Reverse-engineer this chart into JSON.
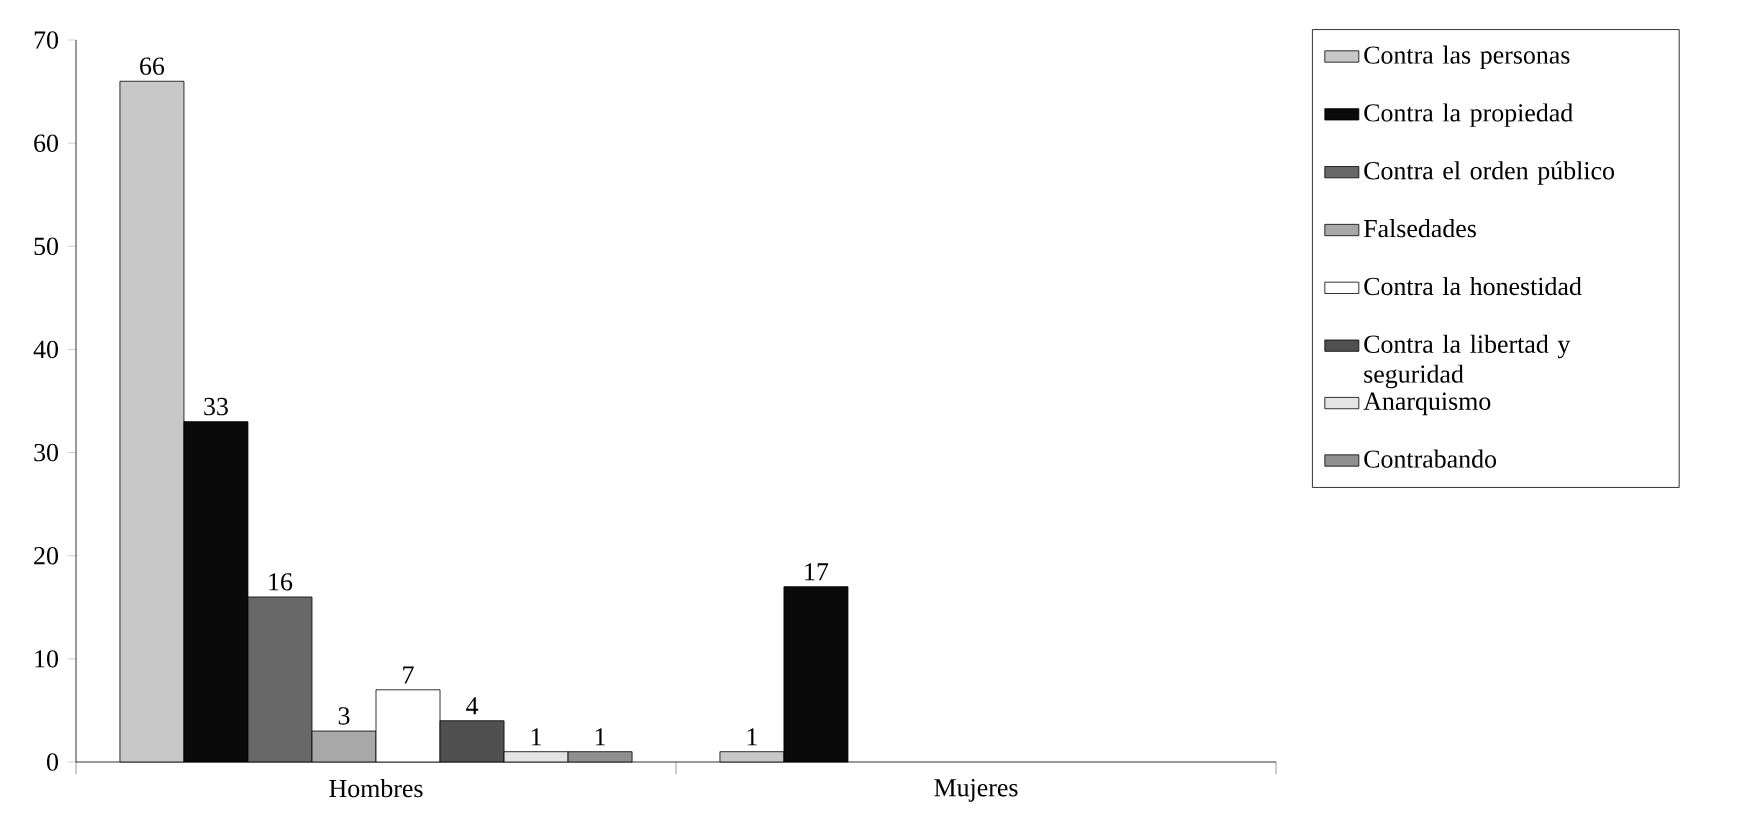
{
  "chart_data": {
    "type": "bar",
    "categories": [
      "Hombres",
      "Mujeres"
    ],
    "series": [
      {
        "name": "Contra las personas",
        "color": "#c8c8c8",
        "values": [
          66,
          1
        ]
      },
      {
        "name": "Contra la propiedad",
        "color": "#0a0a0a",
        "values": [
          33,
          17
        ]
      },
      {
        "name": "Contra el orden público",
        "color": "#686868",
        "values": [
          16,
          null
        ]
      },
      {
        "name": "Falsedades",
        "color": "#a8a8a8",
        "values": [
          3,
          null
        ]
      },
      {
        "name": "Contra la honestidad",
        "color": "#ffffff",
        "values": [
          7,
          null
        ]
      },
      {
        "name": "Contra la libertad y seguridad",
        "color": "#505050",
        "values": [
          4,
          null
        ]
      },
      {
        "name": "Anarquismo",
        "color": "#e4e4e4",
        "values": [
          1,
          null
        ]
      },
      {
        "name": "Contrabando",
        "color": "#909090",
        "values": [
          1,
          null
        ]
      }
    ],
    "ylim": [
      0,
      70
    ],
    "yticks": [
      0,
      10,
      20,
      30,
      40,
      50,
      60,
      70
    ],
    "data_labels": true,
    "legend": "right",
    "grid": false
  }
}
